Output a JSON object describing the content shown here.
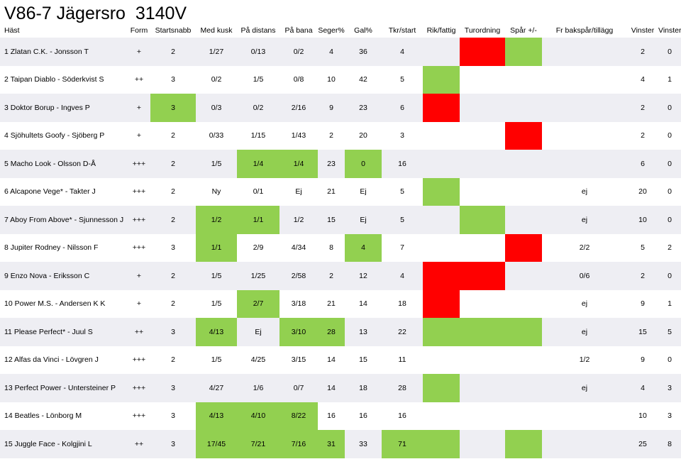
{
  "title": "V86-7 Jägersro  3140V",
  "columns": [
    "Häst",
    "Form",
    "Startsnabb",
    "Med kusk",
    "På distans",
    "På bana",
    "Seger%",
    "Gal%",
    "Tkr/start",
    "Rik/fattig",
    "Turordning",
    "Spår +/-",
    "Fr bakspår/tillägg",
    "Vinster",
    "Vinster fr spets"
  ],
  "colors": {
    "green": "#92d050",
    "red": "#ff0000",
    "stripe": "#eeeef3"
  },
  "rows": [
    {
      "cells": [
        "1 Zlatan C.K. - Jonsson T",
        "+",
        "2",
        "1/27",
        "0/13",
        "0/2",
        "4",
        "36",
        "4",
        "",
        "",
        "",
        "",
        "2",
        "0"
      ],
      "hl": {
        "10": "r",
        "11": "g"
      }
    },
    {
      "cells": [
        "2 Taipan Diablo - Söderkvist S",
        "++",
        "3",
        "0/2",
        "1/5",
        "0/8",
        "10",
        "42",
        "5",
        "",
        "",
        "",
        "",
        "4",
        "1"
      ],
      "hl": {
        "9": "g"
      }
    },
    {
      "cells": [
        "3 Doktor Borup - Ingves P",
        "+",
        "3",
        "0/3",
        "0/2",
        "2/16",
        "9",
        "23",
        "6",
        "",
        "",
        "",
        "",
        "2",
        "0"
      ],
      "hl": {
        "2": "g",
        "9": "r"
      }
    },
    {
      "cells": [
        "4 Sjöhultets Goofy - Sjöberg P",
        "+",
        "2",
        "0/33",
        "1/15",
        "1/43",
        "2",
        "20",
        "3",
        "",
        "",
        "",
        "",
        "2",
        "0"
      ],
      "hl": {
        "11": "r"
      }
    },
    {
      "cells": [
        "5 Macho Look - Olsson D-Å",
        "+++",
        "2",
        "1/5",
        "1/4",
        "1/4",
        "23",
        "0",
        "16",
        "",
        "",
        "",
        "",
        "6",
        "0"
      ],
      "hl": {
        "4": "g",
        "5": "g",
        "7": "g"
      }
    },
    {
      "cells": [
        "6 Alcapone Vege* - Takter J",
        "+++",
        "2",
        "Ny",
        "0/1",
        "Ej",
        "21",
        "Ej",
        "5",
        "",
        "",
        "",
        "ej",
        "20",
        "0"
      ],
      "hl": {
        "9": "g"
      }
    },
    {
      "cells": [
        "7 Aboy From Above* - Sjunnesson J",
        "+++",
        "2",
        "1/2",
        "1/1",
        "1/2",
        "15",
        "Ej",
        "5",
        "",
        "",
        "",
        "ej",
        "10",
        "0"
      ],
      "hl": {
        "3": "g",
        "4": "g",
        "10": "g"
      }
    },
    {
      "cells": [
        "8 Jupiter Rodney - Nilsson F",
        "+++",
        "3",
        "1/1",
        "2/9",
        "4/34",
        "8",
        "4",
        "7",
        "",
        "",
        "",
        "2/2",
        "5",
        "2"
      ],
      "hl": {
        "3": "g",
        "7": "g",
        "11": "r"
      }
    },
    {
      "cells": [
        "9 Enzo Nova - Eriksson C",
        "+",
        "2",
        "1/5",
        "1/25",
        "2/58",
        "2",
        "12",
        "4",
        "",
        "",
        "",
        "0/6",
        "2",
        "0"
      ],
      "hl": {
        "9": "r",
        "10": "r"
      }
    },
    {
      "cells": [
        "10 Power M.S. - Andersen K K",
        "+",
        "2",
        "1/5",
        "2/7",
        "3/18",
        "21",
        "14",
        "18",
        "",
        "",
        "",
        "ej",
        "9",
        "1"
      ],
      "hl": {
        "4": "g",
        "9": "r"
      }
    },
    {
      "cells": [
        "11 Please Perfect* - Juul S",
        "++",
        "3",
        "4/13",
        "Ej",
        "3/10",
        "28",
        "13",
        "22",
        "",
        "",
        "",
        "ej",
        "15",
        "5"
      ],
      "hl": {
        "3": "g",
        "5": "g",
        "6": "g",
        "9": "g",
        "10": "g",
        "11": "g"
      }
    },
    {
      "cells": [
        "12 Alfas da Vinci - Lövgren J",
        "+++",
        "2",
        "1/5",
        "4/25",
        "3/15",
        "14",
        "15",
        "11",
        "",
        "",
        "",
        "1/2",
        "9",
        "0"
      ],
      "hl": {}
    },
    {
      "cells": [
        "13 Perfect Power - Untersteiner P",
        "+++",
        "3",
        "4/27",
        "1/6",
        "0/7",
        "14",
        "18",
        "28",
        "",
        "",
        "",
        "ej",
        "4",
        "3"
      ],
      "hl": {
        "9": "g"
      }
    },
    {
      "cells": [
        "14 Beatles - Lönborg M",
        "+++",
        "3",
        "4/13",
        "4/10",
        "8/22",
        "16",
        "16",
        "16",
        "",
        "",
        "",
        "",
        "10",
        "3"
      ],
      "hl": {
        "3": "g",
        "4": "g",
        "5": "g"
      }
    },
    {
      "cells": [
        "15 Juggle Face - Kolgjini L",
        "++",
        "3",
        "17/45",
        "7/21",
        "7/16",
        "31",
        "33",
        "71",
        "",
        "",
        "",
        "",
        "25",
        "8"
      ],
      "hl": {
        "3": "g",
        "4": "g",
        "5": "g",
        "6": "g",
        "8": "g",
        "9": "g",
        "11": "g"
      }
    }
  ]
}
